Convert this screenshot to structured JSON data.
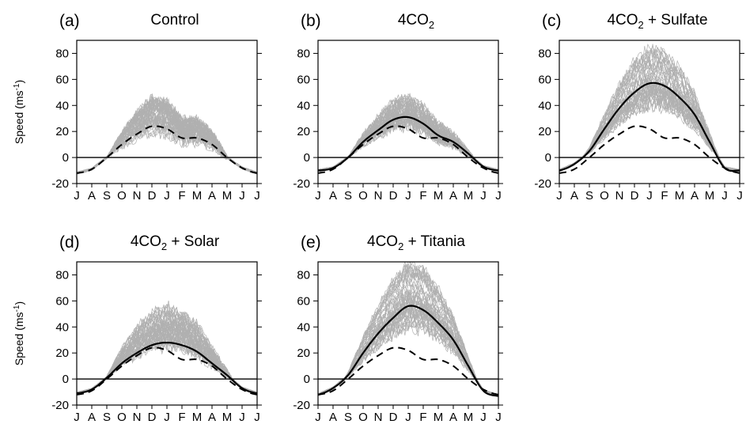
{
  "figure": {
    "ylabel": "Speed (ms",
    "ylabel_sup": "-1",
    "ylabel_close": ")"
  },
  "chart_data": [
    {
      "type": "line",
      "panel": "(a)",
      "title": "Control",
      "title_sub": "",
      "title_tail": "",
      "xlabel": "",
      "ylabel": "Speed (ms-1)",
      "ylim": [
        -20,
        90
      ],
      "yticks": [
        -20,
        0,
        20,
        40,
        60,
        80
      ],
      "x": [
        "J",
        "A",
        "S",
        "O",
        "N",
        "D",
        "J",
        "F",
        "M",
        "A",
        "M",
        "J",
        "J"
      ],
      "ensemble_members": {
        "color": "#b0b0b0",
        "approx_peak_range": [
          20,
          45
        ]
      },
      "series": [
        {
          "style": "dashed",
          "color": "#000000",
          "values": [
            -12,
            -9,
            0,
            10,
            18,
            24,
            22,
            15,
            15,
            10,
            0,
            -8,
            -12
          ]
        }
      ],
      "zero_line": true
    },
    {
      "type": "line",
      "panel": "(b)",
      "title": "4CO",
      "title_sub": "2",
      "title_tail": "",
      "xlabel": "",
      "ylabel": "",
      "ylim": [
        -20,
        90
      ],
      "yticks": [
        -20,
        0,
        20,
        40,
        60,
        80
      ],
      "x": [
        "J",
        "A",
        "S",
        "O",
        "N",
        "D",
        "J",
        "F",
        "M",
        "A",
        "M",
        "J",
        "J"
      ],
      "ensemble_members": {
        "color": "#b0b0b0",
        "approx_peak_range": [
          25,
          45
        ]
      },
      "series": [
        {
          "style": "solid",
          "color": "#000000",
          "values": [
            -10,
            -8,
            0,
            12,
            21,
            29,
            31,
            26,
            17,
            12,
            3,
            -7,
            -10
          ]
        },
        {
          "style": "dashed",
          "color": "#000000",
          "values": [
            -12,
            -9,
            0,
            10,
            18,
            24,
            22,
            15,
            15,
            10,
            0,
            -8,
            -12
          ]
        }
      ],
      "zero_line": true
    },
    {
      "type": "line",
      "panel": "(c)",
      "title": "4CO",
      "title_sub": "2",
      "title_tail": " + Sulfate",
      "xlabel": "",
      "ylabel": "",
      "ylim": [
        -20,
        90
      ],
      "yticks": [
        -20,
        0,
        20,
        40,
        60,
        80
      ],
      "x": [
        "J",
        "A",
        "S",
        "O",
        "N",
        "D",
        "J",
        "F",
        "M",
        "A",
        "M",
        "J",
        "J"
      ],
      "ensemble_members": {
        "color": "#b0b0b0",
        "approx_peak_range": [
          40,
          85
        ]
      },
      "series": [
        {
          "style": "solid",
          "color": "#000000",
          "values": [
            -10,
            -5,
            5,
            22,
            38,
            50,
            57,
            55,
            46,
            33,
            12,
            -8,
            -10
          ]
        },
        {
          "style": "dashed",
          "color": "#000000",
          "values": [
            -12,
            -9,
            0,
            10,
            18,
            24,
            22,
            15,
            15,
            10,
            0,
            -8,
            -12
          ]
        }
      ],
      "zero_line": true
    },
    {
      "type": "line",
      "panel": "(d)",
      "title": "4CO",
      "title_sub": "2",
      "title_tail": " + Solar",
      "xlabel": "",
      "ylabel": "Speed (ms-1)",
      "ylim": [
        -20,
        90
      ],
      "yticks": [
        -20,
        0,
        20,
        40,
        60,
        80
      ],
      "x": [
        "J",
        "A",
        "S",
        "O",
        "N",
        "D",
        "J",
        "F",
        "M",
        "A",
        "M",
        "J",
        "J"
      ],
      "ensemble_members": {
        "color": "#b0b0b0",
        "approx_peak_range": [
          25,
          55
        ]
      },
      "series": [
        {
          "style": "solid",
          "color": "#000000",
          "values": [
            -11,
            -8,
            1,
            12,
            20,
            26,
            28,
            26,
            21,
            12,
            3,
            -7,
            -11
          ]
        },
        {
          "style": "dashed",
          "color": "#000000",
          "values": [
            -12,
            -9,
            0,
            10,
            18,
            24,
            22,
            15,
            15,
            10,
            0,
            -8,
            -12
          ]
        }
      ],
      "zero_line": true
    },
    {
      "type": "line",
      "panel": "(e)",
      "title": "4CO",
      "title_sub": "2",
      "title_tail": " + Titania",
      "xlabel": "",
      "ylabel": "",
      "ylim": [
        -20,
        90
      ],
      "yticks": [
        -20,
        0,
        20,
        40,
        60,
        80
      ],
      "x": [
        "J",
        "A",
        "S",
        "O",
        "N",
        "D",
        "J",
        "F",
        "M",
        "A",
        "M",
        "J",
        "J"
      ],
      "ensemble_members": {
        "color": "#b0b0b0",
        "approx_peak_range": [
          40,
          90
        ]
      },
      "series": [
        {
          "style": "solid",
          "color": "#000000",
          "values": [
            -12,
            -7,
            3,
            20,
            35,
            47,
            56,
            53,
            43,
            30,
            10,
            -9,
            -13
          ]
        },
        {
          "style": "dashed",
          "color": "#000000",
          "values": [
            -12,
            -9,
            0,
            10,
            18,
            24,
            22,
            15,
            15,
            10,
            0,
            -8,
            -12
          ]
        }
      ],
      "zero_line": true
    }
  ]
}
